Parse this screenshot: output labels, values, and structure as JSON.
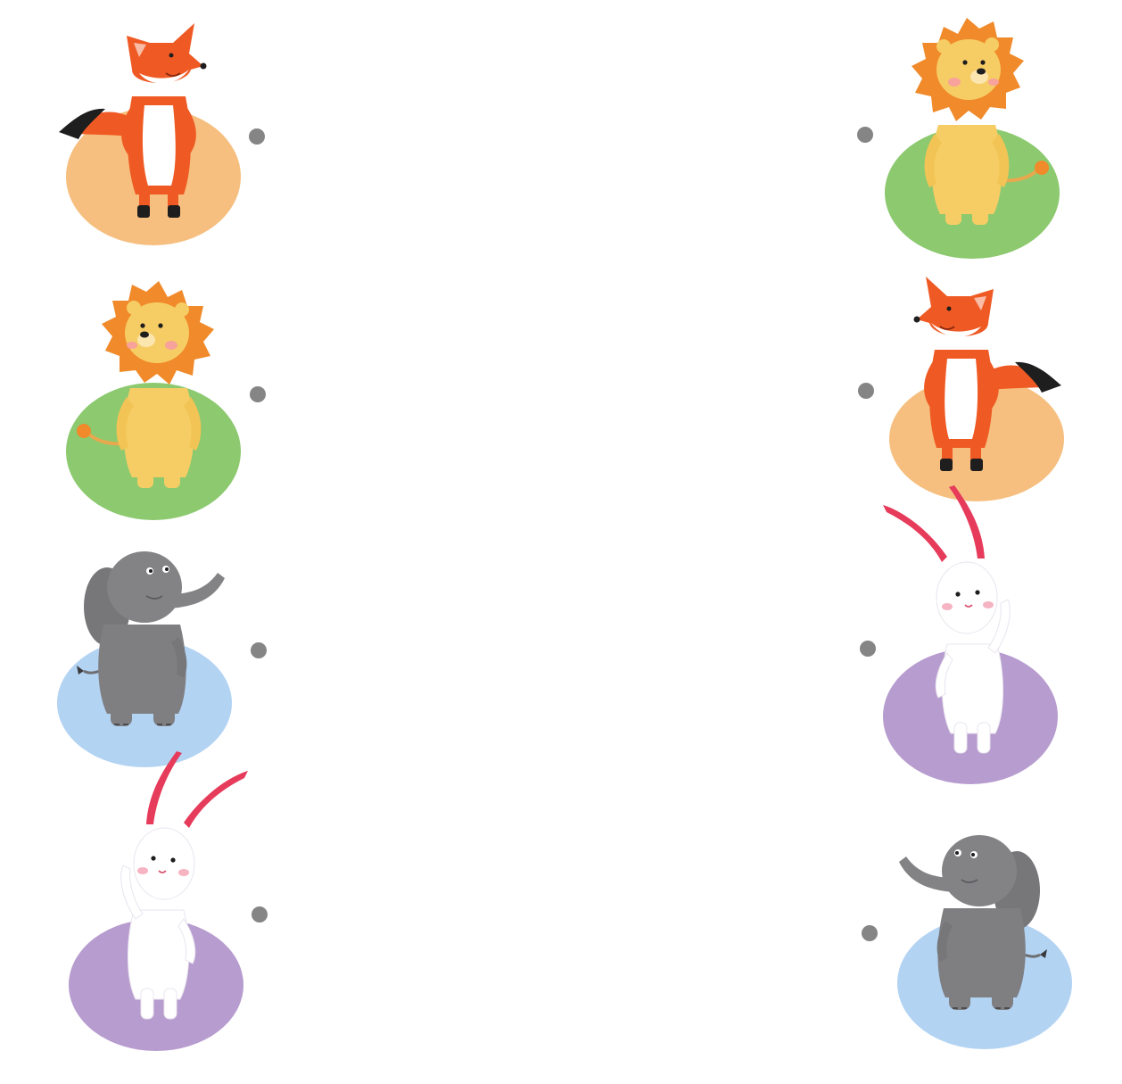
{
  "worksheet": {
    "left_column": [
      {
        "animal": "fox",
        "backdrop": "#f6bf7f"
      },
      {
        "animal": "lion",
        "backdrop": "#8cc96f"
      },
      {
        "animal": "elephant",
        "backdrop": "#b3d3f3"
      },
      {
        "animal": "rabbit",
        "backdrop": "#b79ccf"
      }
    ],
    "right_column": [
      {
        "animal": "lion",
        "backdrop": "#8cc96f"
      },
      {
        "animal": "fox",
        "backdrop": "#f6bf7f"
      },
      {
        "animal": "rabbit",
        "backdrop": "#b79ccf"
      },
      {
        "animal": "elephant",
        "backdrop": "#b3d3f3"
      }
    ],
    "connector_dot_color": "#858585"
  },
  "palette": {
    "fox_orange": "#ef5a24",
    "fox_white": "#ffffff",
    "fox_tail_tip": "#1e1e1e",
    "lion_body": "#f6cd65",
    "lion_mane": "#f08a2a",
    "elephant_body": "#7f7f82",
    "rabbit_body": "#ffffff",
    "rabbit_ear": "#e63b5a"
  }
}
